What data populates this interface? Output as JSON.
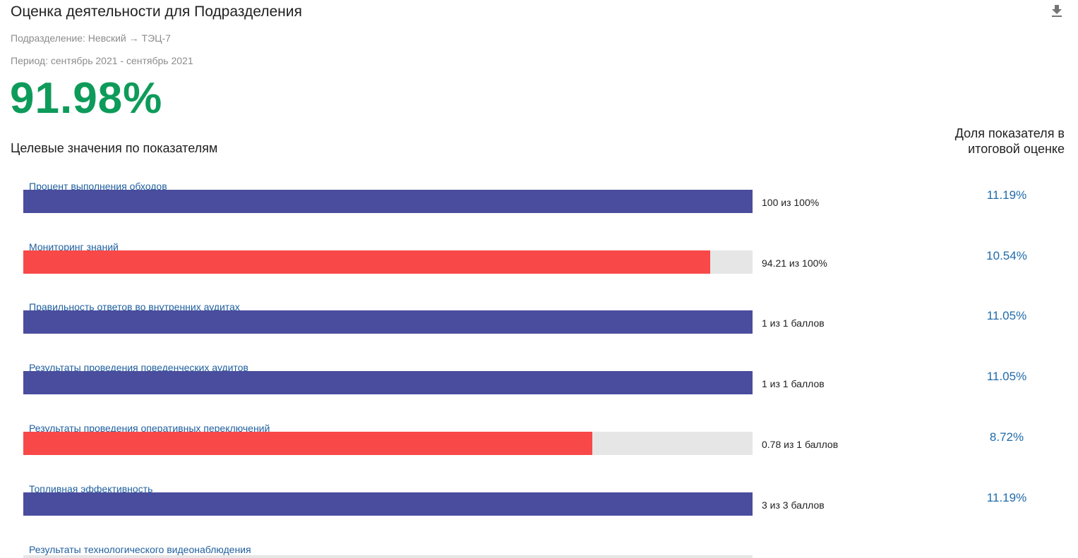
{
  "header": {
    "title": "Оценка деятельности для Подразделения",
    "download_icon": "download-icon",
    "department": "Подразделение: Невский → ТЭЦ-7",
    "period": "Период: сентябрь 2021 - сентябрь 2021",
    "score": "91.98%"
  },
  "section": {
    "targets_title": "Целевые значения по показателям",
    "share_title": "Доля показателя в итоговой оценке"
  },
  "colors": {
    "ok": "#4a4c9d",
    "bad": "#f84848",
    "track": "#e6e6e6",
    "score": "#0e9b5a"
  },
  "indicators": [
    {
      "label": "Процент выполнения обходов",
      "value_text": "100 из 100%",
      "fill": 1.0,
      "status": "ok",
      "share": "11.19%"
    },
    {
      "label": "Мониторинг знаний",
      "value_text": "94.21 из 100%",
      "fill": 0.9421,
      "status": "bad",
      "share": "10.54%"
    },
    {
      "label": "Правильность ответов во внутренних аудитах",
      "value_text": "1 из 1 баллов",
      "fill": 1.0,
      "status": "ok",
      "share": "11.05%"
    },
    {
      "label": "Результаты проведения поведенческих аудитов",
      "value_text": "1 из 1 баллов",
      "fill": 1.0,
      "status": "ok",
      "share": "11.05%"
    },
    {
      "label": "Результаты проведения оперативных переключений",
      "value_text": "0.78 из 1 баллов",
      "fill": 0.78,
      "status": "bad",
      "share": "8.72%"
    },
    {
      "label": "Топливная эффективность",
      "value_text": "3 из 3 баллов",
      "fill": 1.0,
      "status": "ok",
      "share": "11.19%"
    },
    {
      "label": "Результаты технологического видеонаблюдения"
    }
  ]
}
